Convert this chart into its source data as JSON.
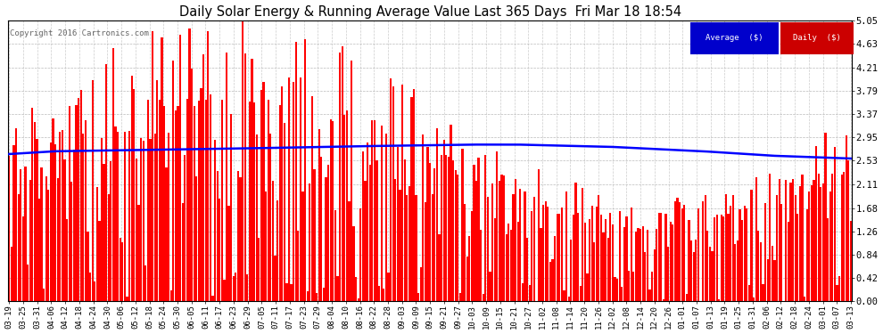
{
  "title": "Daily Solar Energy & Running Average Value Last 365 Days  Fri Mar 18 18:54",
  "copyright": "Copyright 2016 Cartronics.com",
  "bar_color": "#ff0000",
  "avg_line_color": "#0000ff",
  "background_color": "#ffffff",
  "plot_bg_color": "#ffffff",
  "grid_color": "#aaaaaa",
  "ylim": [
    0.0,
    5.05
  ],
  "yticks": [
    0.0,
    0.42,
    0.84,
    1.26,
    1.68,
    2.11,
    2.53,
    2.95,
    3.37,
    3.79,
    4.21,
    4.63,
    5.05
  ],
  "legend_avg_color": "#0000cc",
  "legend_daily_color": "#cc0000",
  "legend_avg_text": "Average  ($)",
  "legend_daily_text": "Daily  ($)",
  "x_tick_labels": [
    "03-19",
    "03-25",
    "03-31",
    "04-06",
    "04-12",
    "04-18",
    "04-24",
    "04-30",
    "05-06",
    "05-12",
    "05-18",
    "05-24",
    "05-30",
    "06-05",
    "06-11",
    "06-17",
    "06-23",
    "06-29",
    "07-05",
    "07-11",
    "07-17",
    "07-23",
    "07-29",
    "08-04",
    "08-10",
    "08-16",
    "08-22",
    "08-28",
    "09-03",
    "09-09",
    "09-15",
    "09-21",
    "09-27",
    "10-03",
    "10-09",
    "10-15",
    "10-21",
    "10-27",
    "11-02",
    "11-08",
    "11-14",
    "11-20",
    "11-26",
    "12-02",
    "12-08",
    "12-14",
    "12-20",
    "12-26",
    "01-01",
    "01-07",
    "01-13",
    "01-19",
    "01-25",
    "01-31",
    "02-06",
    "02-12",
    "02-18",
    "02-24",
    "03-01",
    "03-07",
    "03-13"
  ],
  "avg_key_x": [
    0,
    20,
    50,
    100,
    150,
    200,
    220,
    260,
    300,
    330,
    364
  ],
  "avg_key_y": [
    2.65,
    2.7,
    2.72,
    2.75,
    2.79,
    2.82,
    2.82,
    2.78,
    2.7,
    2.62,
    2.57
  ]
}
